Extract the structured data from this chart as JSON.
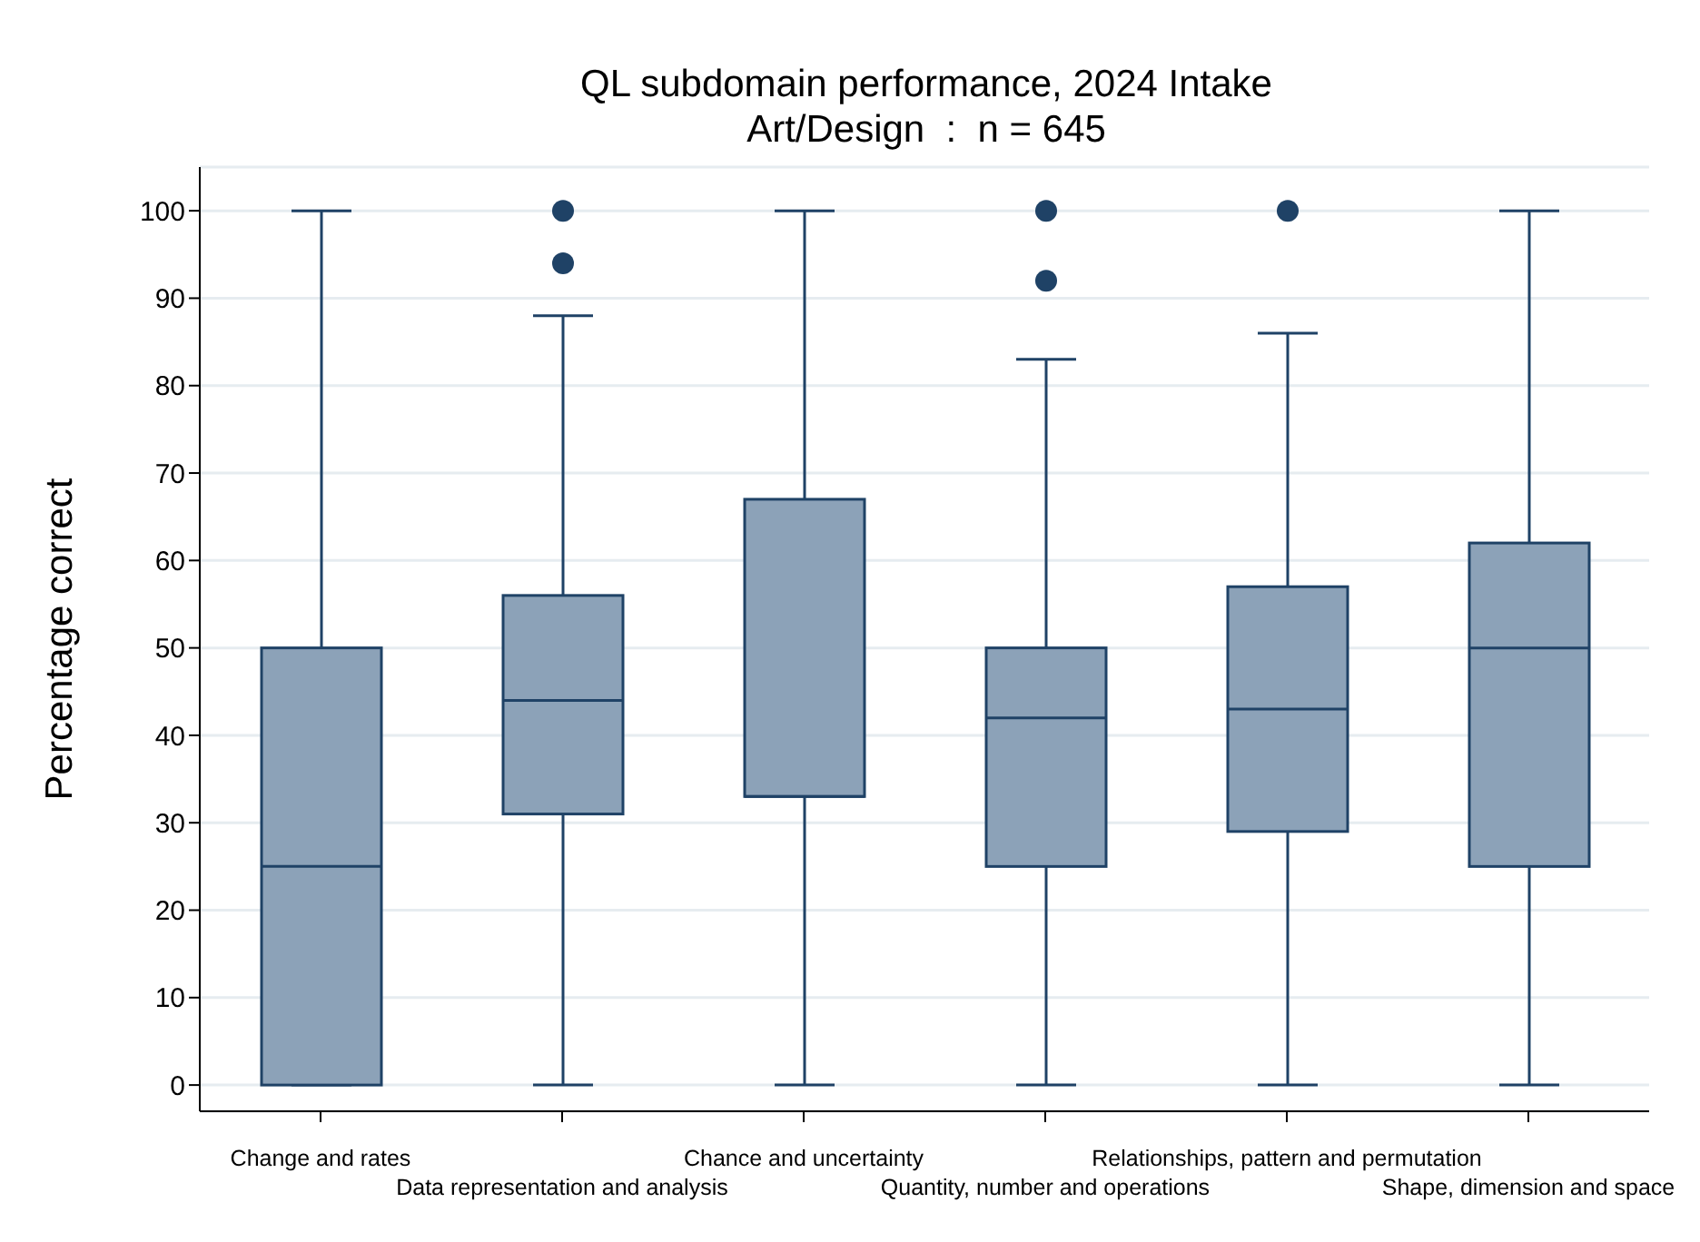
{
  "chart_data": {
    "type": "box",
    "title": "QL subdomain performance, 2024 Intake",
    "subtitle": "Art/Design  :  n = 645",
    "ylabel": "Percentage correct",
    "categories": [
      "Change and rates",
      "Data representation and analysis",
      "Chance and uncertainty",
      "Quantity, number and operations",
      "Relationships, pattern and permutation",
      "Shape, dimension and space"
    ],
    "boxes": [
      {
        "low": 0,
        "q1": 0,
        "median": 25,
        "q3": 50,
        "high": 100
      },
      {
        "low": 0,
        "q1": 31,
        "median": 44,
        "q3": 56,
        "high": 88,
        "outliers": [
          94,
          100
        ]
      },
      {
        "low": 0,
        "q1": 33,
        "median": 33,
        "q3": 67,
        "high": 100
      },
      {
        "low": 0,
        "q1": 25,
        "median": 42,
        "q3": 50,
        "high": 83,
        "outliers": [
          92,
          100
        ]
      },
      {
        "low": 0,
        "q1": 29,
        "median": 43,
        "q3": 57,
        "high": 86,
        "outliers": [
          100
        ]
      },
      {
        "low": 0,
        "q1": 25,
        "median": 50,
        "q3": 62,
        "high": 100
      }
    ],
    "color": "#8ca2b8",
    "ylim": [
      -3,
      105
    ],
    "yticks": [
      0,
      10,
      20,
      30,
      40,
      50,
      60,
      70,
      80,
      90,
      100
    ],
    "grid": "y"
  }
}
